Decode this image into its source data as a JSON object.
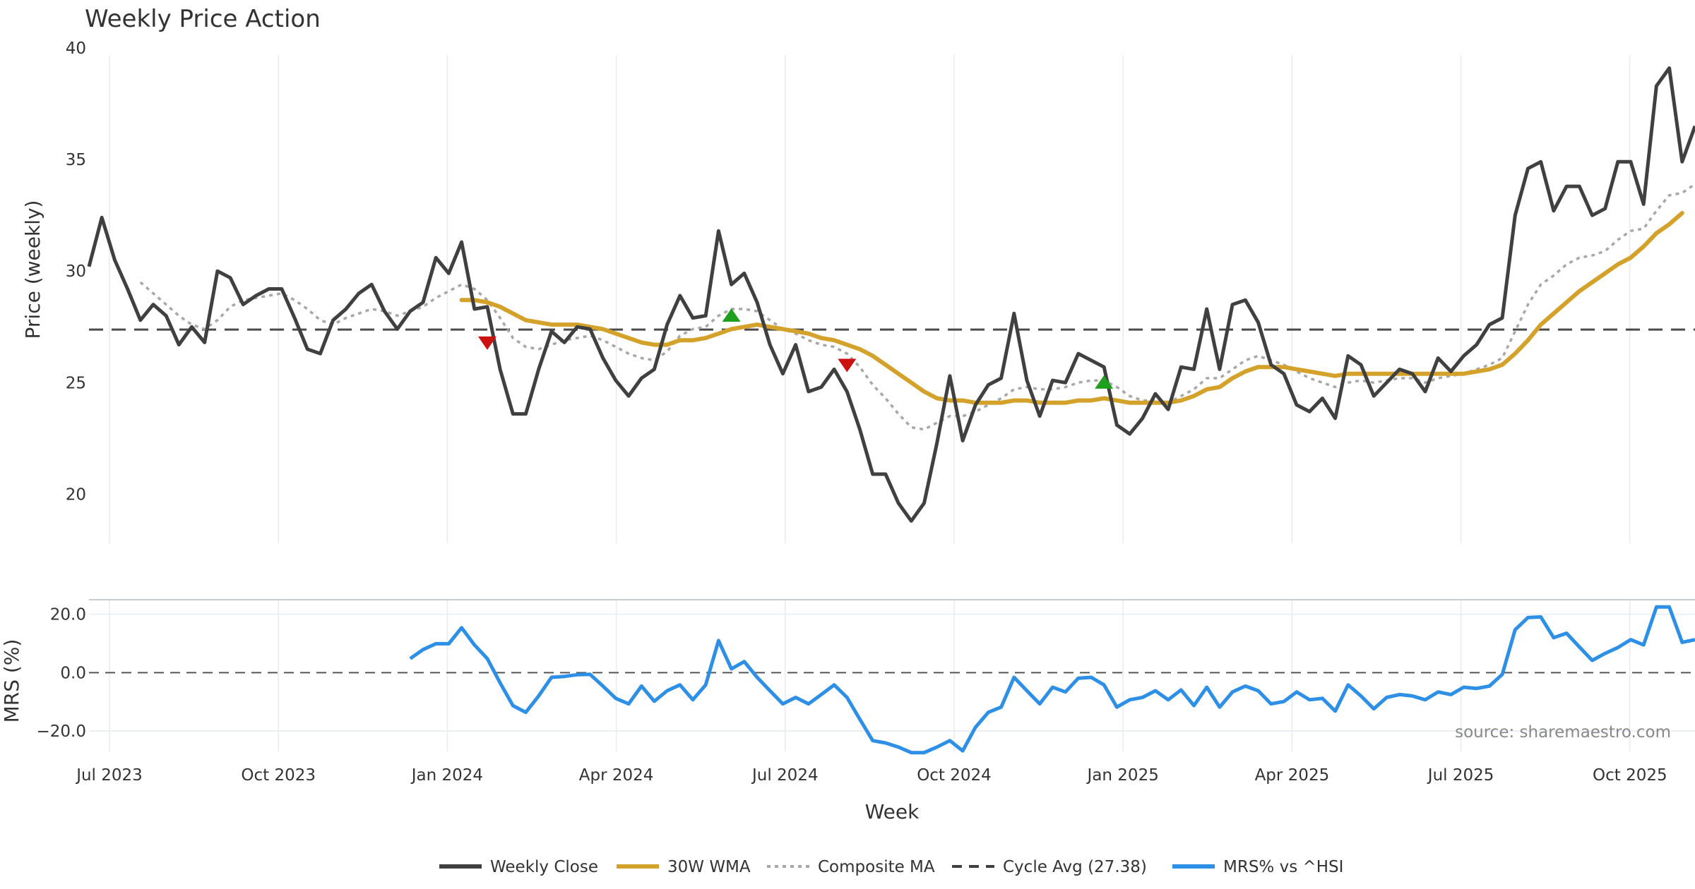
{
  "chart_data": {
    "type": "line",
    "title": "Weekly Price Action",
    "xlabel": "Week",
    "x_ticks": [
      "Jul 2023",
      "Oct 2023",
      "Jan 2024",
      "Apr 2024",
      "Jul 2024",
      "Oct 2024",
      "Jan 2025",
      "Apr 2025",
      "Jul 2025",
      "Oct 2025"
    ],
    "top_panel": {
      "ylabel": "Price (weekly)",
      "ylim": [
        17.8,
        40
      ],
      "yticks": [
        "20",
        "25",
        "30",
        "35",
        "40"
      ],
      "cycle_avg": 27.38,
      "series": {
        "weekly_close": [
          30.2,
          32.4,
          30.5,
          29.2,
          27.8,
          28.5,
          28.0,
          26.7,
          27.5,
          26.8,
          30.0,
          29.7,
          28.5,
          28.9,
          29.2,
          29.2,
          27.9,
          26.5,
          26.3,
          27.8,
          28.3,
          29.0,
          29.4,
          28.2,
          27.4,
          28.2,
          28.6,
          30.6,
          29.9,
          31.3,
          28.3,
          28.4,
          25.6,
          23.6,
          23.6,
          25.6,
          27.3,
          26.8,
          27.5,
          27.4,
          26.1,
          25.1,
          24.4,
          25.2,
          25.6,
          27.6,
          28.9,
          27.9,
          28.0,
          31.8,
          29.4,
          29.9,
          28.6,
          26.7,
          25.4,
          26.7,
          24.6,
          24.8,
          25.6,
          24.6,
          22.9,
          20.9,
          20.9,
          19.6,
          18.8,
          19.6,
          22.3,
          25.3,
          22.4,
          24.0,
          24.9,
          25.2,
          28.1,
          25.1,
          23.5,
          25.1,
          25.0,
          26.3,
          26.0,
          25.7,
          23.1,
          22.7,
          23.4,
          24.5,
          23.8,
          25.7,
          25.6,
          28.3,
          25.6,
          28.5,
          28.7,
          27.7,
          25.8,
          25.4,
          24.0,
          23.7,
          24.3,
          23.4,
          26.2,
          25.8,
          24.4,
          25.0,
          25.6,
          25.4,
          24.6,
          26.1,
          25.5,
          26.2,
          26.7,
          27.6,
          27.9,
          32.5,
          34.6,
          34.9,
          32.7,
          33.8,
          33.8,
          32.5,
          32.8,
          34.9,
          34.9,
          33.0,
          38.3,
          39.1,
          34.9,
          36.5
        ],
        "wma_30": [
          null,
          null,
          null,
          null,
          null,
          null,
          null,
          null,
          null,
          null,
          null,
          null,
          null,
          null,
          null,
          null,
          null,
          null,
          null,
          null,
          null,
          null,
          null,
          null,
          null,
          null,
          null,
          null,
          null,
          28.7,
          28.7,
          28.6,
          28.4,
          28.1,
          27.8,
          27.7,
          27.6,
          27.6,
          27.6,
          27.5,
          27.4,
          27.2,
          27.0,
          26.8,
          26.7,
          26.7,
          26.9,
          26.9,
          27.0,
          27.2,
          27.4,
          27.5,
          27.6,
          27.5,
          27.4,
          27.3,
          27.2,
          27.0,
          26.9,
          26.7,
          26.5,
          26.2,
          25.8,
          25.4,
          25.0,
          24.6,
          24.3,
          24.2,
          24.2,
          24.1,
          24.1,
          24.1,
          24.2,
          24.2,
          24.1,
          24.1,
          24.1,
          24.2,
          24.2,
          24.3,
          24.2,
          24.1,
          24.1,
          24.1,
          24.1,
          24.2,
          24.4,
          24.7,
          24.8,
          25.2,
          25.5,
          25.7,
          25.7,
          25.7,
          25.6,
          25.5,
          25.4,
          25.3,
          25.4,
          25.4,
          25.4,
          25.4,
          25.4,
          25.4,
          25.4,
          25.4,
          25.4,
          25.4,
          25.5,
          25.6,
          25.8,
          26.3,
          26.9,
          27.6,
          28.1,
          28.6,
          29.1,
          29.5,
          29.9,
          30.3,
          30.6,
          31.1,
          31.7,
          32.1,
          32.6
        ],
        "composite_ma": [
          null,
          null,
          null,
          null,
          29.5,
          29.0,
          28.5,
          28.0,
          27.6,
          27.4,
          27.8,
          28.4,
          28.7,
          28.8,
          28.9,
          29.0,
          28.7,
          28.3,
          27.8,
          27.6,
          27.9,
          28.1,
          28.3,
          28.2,
          28.0,
          28.2,
          28.4,
          28.8,
          29.1,
          29.4,
          29.2,
          28.7,
          27.9,
          27.0,
          26.6,
          26.5,
          26.7,
          26.9,
          27.0,
          27.1,
          26.9,
          26.6,
          26.3,
          26.1,
          26.0,
          26.4,
          27.1,
          27.4,
          27.5,
          28.0,
          28.3,
          28.3,
          28.2,
          27.8,
          27.4,
          27.2,
          26.9,
          26.7,
          26.6,
          26.3,
          25.7,
          24.9,
          24.3,
          23.6,
          23.0,
          22.9,
          23.2,
          23.5,
          23.5,
          23.7,
          24.0,
          24.3,
          24.7,
          24.8,
          24.7,
          24.7,
          24.8,
          25.0,
          25.1,
          25.1,
          24.8,
          24.4,
          24.2,
          24.2,
          24.1,
          24.4,
          24.7,
          25.2,
          25.2,
          25.6,
          26.0,
          26.2,
          26.0,
          25.8,
          25.5,
          25.2,
          25.0,
          24.8,
          25.0,
          25.1,
          25.0,
          25.1,
          25.2,
          25.2,
          25.0,
          25.2,
          25.3,
          25.4,
          25.6,
          25.8,
          26.1,
          27.3,
          28.5,
          29.4,
          29.8,
          30.3,
          30.6,
          30.7,
          30.9,
          31.4,
          31.8,
          31.9,
          32.7,
          33.4,
          33.5,
          33.9
        ]
      },
      "markers": [
        {
          "type": "sell",
          "index": 31,
          "y": 26.8
        },
        {
          "type": "buy",
          "index": 50,
          "y": 28.0
        },
        {
          "type": "sell",
          "index": 59,
          "y": 25.8
        },
        {
          "type": "buy",
          "index": 79,
          "y": 25.0
        }
      ]
    },
    "bottom_panel": {
      "ylabel": "MRS (%)",
      "ylim": [
        -27,
        25
      ],
      "yticks": [
        "20.0",
        "0.0",
        "−20.0"
      ],
      "series": {
        "mrs_hsi": [
          null,
          null,
          null,
          null,
          null,
          null,
          null,
          null,
          null,
          null,
          null,
          null,
          null,
          null,
          null,
          null,
          null,
          null,
          null,
          null,
          null,
          null,
          null,
          null,
          null,
          4.8,
          7.9,
          9.9,
          9.9,
          15.4,
          9.5,
          4.8,
          -3.5,
          -11.3,
          -13.6,
          -8.0,
          -1.6,
          -1.3,
          -0.7,
          -0.6,
          -4.6,
          -8.8,
          -10.7,
          -4.6,
          -9.8,
          -6.2,
          -4.2,
          -9.3,
          -4.2,
          11.0,
          1.3,
          3.8,
          -1.6,
          -6.2,
          -10.7,
          -8.5,
          -10.7,
          -7.5,
          -4.2,
          -8.5,
          -16.0,
          -23.3,
          -24.1,
          -25.5,
          -27.4,
          -27.4,
          -25.5,
          -23.3,
          -26.8,
          -18.7,
          -13.6,
          -11.8,
          -1.6,
          -6.2,
          -10.7,
          -5.0,
          -6.6,
          -1.9,
          -1.6,
          -4.2,
          -11.8,
          -9.3,
          -8.5,
          -6.2,
          -9.3,
          -5.9,
          -11.3,
          -5.0,
          -11.8,
          -6.6,
          -4.6,
          -6.2,
          -10.7,
          -9.9,
          -6.6,
          -9.3,
          -8.8,
          -13.2,
          -4.2,
          -8.0,
          -12.4,
          -8.5,
          -7.5,
          -8.0,
          -9.3,
          -6.6,
          -7.5,
          -5.0,
          -5.4,
          -4.6,
          -0.6,
          14.7,
          18.9,
          19.1,
          12.0,
          13.5,
          8.8,
          4.2,
          6.6,
          8.6,
          11.3,
          9.5,
          22.5,
          22.5,
          10.4,
          11.3
        ]
      }
    },
    "legend": [
      {
        "label": "Weekly Close",
        "color": "#404040",
        "style": "solid"
      },
      {
        "label": "30W WMA",
        "color": "#d4a22a",
        "style": "solid"
      },
      {
        "label": "Composite MA",
        "color": "#a8a8a8",
        "style": "dotted"
      },
      {
        "label": "Cycle Avg (27.38)",
        "color": "#404040",
        "style": "dashed"
      },
      {
        "label": "MRS% vs ^HSI",
        "color": "#2d8fe6",
        "style": "solid"
      }
    ],
    "source_note": "source: sharemaestro.com"
  },
  "colors": {
    "close": "#404040",
    "wma": "#d4a22a",
    "composite": "#a8a8a8",
    "cycle": "#4a4a4a",
    "mrs": "#2d8fe6",
    "buy": "#1ea01e",
    "sell": "#cc1111",
    "grid": "#e6ecf0"
  }
}
